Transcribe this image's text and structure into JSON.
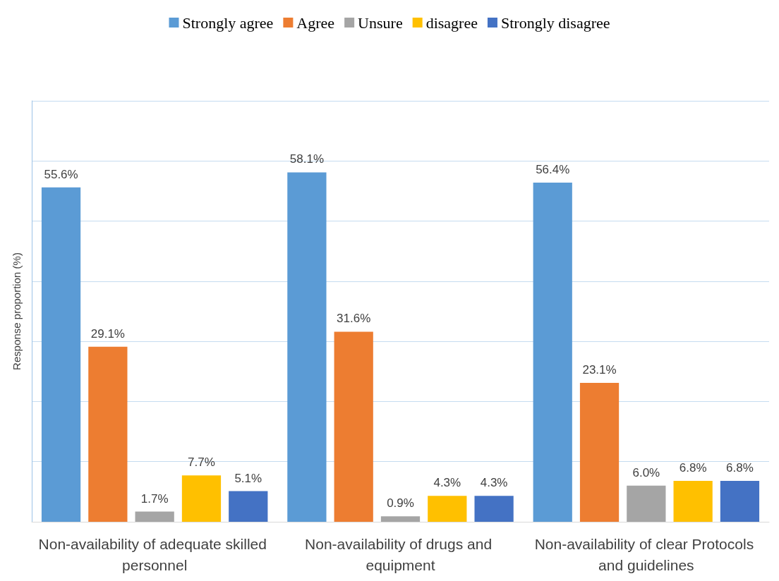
{
  "chart_data": {
    "type": "bar",
    "ylabel": "Response proportion (%)",
    "categories": [
      "Non-availability of adequate skilled personnel",
      "Non-availability of drugs and equipment",
      "Non-availability of clear Protocols and guidelines"
    ],
    "series": [
      {
        "name": "Strongly agree",
        "color": "#5b9bd5",
        "values": [
          55.6,
          58.1,
          56.4
        ],
        "value_labels": [
          "55.6%",
          "58.1%",
          "56.4%"
        ]
      },
      {
        "name": "Agree",
        "color": "#ed7d31",
        "values": [
          29.1,
          31.6,
          23.1
        ],
        "value_labels": [
          "29.1%",
          "31.6%",
          "23.1%"
        ]
      },
      {
        "name": "Unsure",
        "color": "#a5a5a5",
        "values": [
          1.7,
          0.9,
          6.0
        ],
        "value_labels": [
          "1.7%",
          "0.9%",
          "6.0%"
        ]
      },
      {
        "name": "disagree",
        "color": "#ffc000",
        "values": [
          7.7,
          4.3,
          6.8
        ],
        "value_labels": [
          "7.7%",
          "4.3%",
          "6.8%"
        ]
      },
      {
        "name": "Strongly disagree",
        "color": "#4472c4",
        "values": [
          5.1,
          4.3,
          6.8
        ],
        "value_labels": [
          "5.1%",
          "4.3%",
          "6.8%"
        ]
      }
    ],
    "ylim": [
      0,
      70
    ],
    "yticks": [
      {
        "value": 0,
        "label": null
      },
      {
        "value": 10,
        "label": null
      },
      {
        "value": 20,
        "label": null
      },
      {
        "value": 30,
        "label": null
      },
      {
        "value": 40,
        "label": null
      },
      {
        "value": 50,
        "label": null
      },
      {
        "value": 60,
        "label": null
      },
      {
        "value": 70,
        "label": null
      }
    ],
    "tick_labels": "x",
    "grid": "y",
    "legend": "top"
  }
}
